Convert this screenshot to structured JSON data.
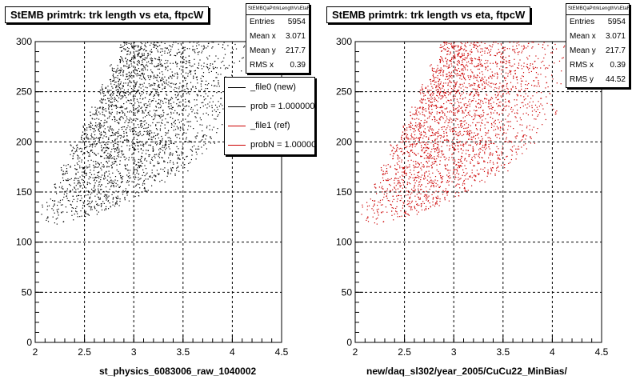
{
  "footer_text": "",
  "chart_data": [
    {
      "type": "scatter",
      "title": "StEMB primtrk: trk length vs eta, ftpcW",
      "xlabel": "st_physics_6083006_raw_1040002",
      "ylabel": "",
      "xlim": [
        2,
        4.5
      ],
      "ylim": [
        0,
        300
      ],
      "x_ticks": [
        "2",
        "2.5",
        "3",
        "3.5",
        "4",
        "4.5"
      ],
      "y_ticks": [
        "0",
        "50",
        "100",
        "150",
        "200",
        "250",
        "300"
      ],
      "grid": true,
      "marker_color": "#000000",
      "stats": {
        "name": "StEMBQaPrtrkLengthVsEtaFW",
        "rows": [
          {
            "label": "Entries",
            "value": "5954"
          },
          {
            "label": "Mean x",
            "value": "3.071"
          },
          {
            "label": "Mean y",
            "value": "217.7"
          },
          {
            "label": "RMS x",
            "value": "0.39"
          }
        ]
      },
      "legend": {
        "placement": "top-right",
        "entries": [
          {
            "label": "_file0 (new)",
            "color": "#000000"
          },
          {
            "label": "prob = 1.000000",
            "color": "#000000"
          },
          {
            "label": "_file1 (ref)",
            "color": "#cc0000"
          },
          {
            "label": "probN = 1.000000",
            "color": "#cc0000"
          }
        ]
      },
      "density_profile": [
        {
          "x": 2.1,
          "y_min": 115,
          "y_max": 140,
          "weight": 0.05
        },
        {
          "x": 2.2,
          "y_min": 118,
          "y_max": 160,
          "weight": 0.12
        },
        {
          "x": 2.3,
          "y_min": 120,
          "y_max": 178,
          "weight": 0.22
        },
        {
          "x": 2.4,
          "y_min": 122,
          "y_max": 198,
          "weight": 0.35
        },
        {
          "x": 2.5,
          "y_min": 125,
          "y_max": 218,
          "weight": 0.5
        },
        {
          "x": 2.6,
          "y_min": 128,
          "y_max": 238,
          "weight": 0.68
        },
        {
          "x": 2.7,
          "y_min": 132,
          "y_max": 258,
          "weight": 0.85
        },
        {
          "x": 2.8,
          "y_min": 135,
          "y_max": 278,
          "weight": 0.98
        },
        {
          "x": 2.9,
          "y_min": 140,
          "y_max": 300,
          "weight": 1.0
        },
        {
          "x": 3.0,
          "y_min": 145,
          "y_max": 300,
          "weight": 0.98
        },
        {
          "x": 3.1,
          "y_min": 150,
          "y_max": 300,
          "weight": 0.9
        },
        {
          "x": 3.2,
          "y_min": 155,
          "y_max": 300,
          "weight": 0.8
        },
        {
          "x": 3.3,
          "y_min": 160,
          "y_max": 300,
          "weight": 0.7
        },
        {
          "x": 3.4,
          "y_min": 165,
          "y_max": 300,
          "weight": 0.6
        },
        {
          "x": 3.5,
          "y_min": 170,
          "y_max": 300,
          "weight": 0.5
        },
        {
          "x": 3.6,
          "y_min": 178,
          "y_max": 300,
          "weight": 0.42
        },
        {
          "x": 3.7,
          "y_min": 188,
          "y_max": 300,
          "weight": 0.33
        },
        {
          "x": 3.8,
          "y_min": 198,
          "y_max": 300,
          "weight": 0.25
        },
        {
          "x": 3.9,
          "y_min": 210,
          "y_max": 300,
          "weight": 0.16
        },
        {
          "x": 4.0,
          "y_min": 225,
          "y_max": 300,
          "weight": 0.08
        },
        {
          "x": 4.1,
          "y_min": 240,
          "y_max": 300,
          "weight": 0.03
        }
      ]
    },
    {
      "type": "scatter",
      "title": "StEMB primtrk: trk length vs eta, ftpcW",
      "xlabel": "new/daq_sl302/year_2005/CuCu22_MinBias/",
      "ylabel": "",
      "xlim": [
        2,
        4.5
      ],
      "ylim": [
        0,
        300
      ],
      "x_ticks": [
        "2",
        "2.5",
        "3",
        "3.5",
        "4",
        "4.5"
      ],
      "y_ticks": [
        "0",
        "50",
        "100",
        "150",
        "200",
        "250",
        "300"
      ],
      "grid": true,
      "marker_color": "#cc0000",
      "stats": {
        "name": "StEMBQaPrtrkLengthVsEtaFW",
        "rows": [
          {
            "label": "Entries",
            "value": "5954"
          },
          {
            "label": "Mean x",
            "value": "3.071"
          },
          {
            "label": "Mean y",
            "value": "217.7"
          },
          {
            "label": "RMS x",
            "value": "0.39"
          },
          {
            "label": "RMS y",
            "value": "44.52"
          }
        ]
      },
      "density_profile": [
        {
          "x": 2.1,
          "y_min": 115,
          "y_max": 140,
          "weight": 0.05
        },
        {
          "x": 2.2,
          "y_min": 118,
          "y_max": 160,
          "weight": 0.12
        },
        {
          "x": 2.3,
          "y_min": 120,
          "y_max": 178,
          "weight": 0.22
        },
        {
          "x": 2.4,
          "y_min": 122,
          "y_max": 198,
          "weight": 0.35
        },
        {
          "x": 2.5,
          "y_min": 125,
          "y_max": 218,
          "weight": 0.5
        },
        {
          "x": 2.6,
          "y_min": 128,
          "y_max": 238,
          "weight": 0.68
        },
        {
          "x": 2.7,
          "y_min": 132,
          "y_max": 258,
          "weight": 0.85
        },
        {
          "x": 2.8,
          "y_min": 135,
          "y_max": 278,
          "weight": 0.98
        },
        {
          "x": 2.9,
          "y_min": 140,
          "y_max": 300,
          "weight": 1.0
        },
        {
          "x": 3.0,
          "y_min": 145,
          "y_max": 300,
          "weight": 0.98
        },
        {
          "x": 3.1,
          "y_min": 150,
          "y_max": 300,
          "weight": 0.9
        },
        {
          "x": 3.2,
          "y_min": 155,
          "y_max": 300,
          "weight": 0.8
        },
        {
          "x": 3.3,
          "y_min": 160,
          "y_max": 300,
          "weight": 0.7
        },
        {
          "x": 3.4,
          "y_min": 165,
          "y_max": 300,
          "weight": 0.6
        },
        {
          "x": 3.5,
          "y_min": 170,
          "y_max": 300,
          "weight": 0.5
        },
        {
          "x": 3.6,
          "y_min": 178,
          "y_max": 300,
          "weight": 0.42
        },
        {
          "x": 3.7,
          "y_min": 188,
          "y_max": 300,
          "weight": 0.33
        },
        {
          "x": 3.8,
          "y_min": 198,
          "y_max": 300,
          "weight": 0.25
        },
        {
          "x": 3.9,
          "y_min": 210,
          "y_max": 300,
          "weight": 0.16
        },
        {
          "x": 4.0,
          "y_min": 225,
          "y_max": 300,
          "weight": 0.08
        },
        {
          "x": 4.1,
          "y_min": 240,
          "y_max": 300,
          "weight": 0.03
        }
      ]
    }
  ]
}
